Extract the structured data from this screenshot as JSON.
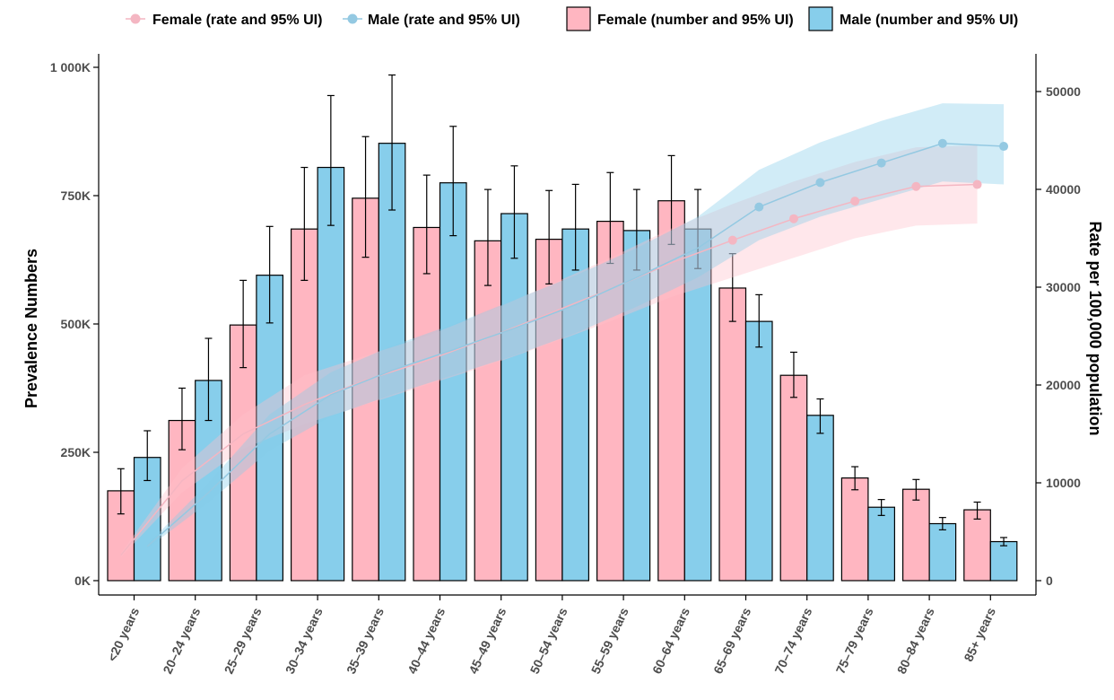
{
  "chart_data": {
    "type": "bar",
    "combined_with": "line",
    "categories": [
      "<20 years",
      "20–24 years",
      "25–29 years",
      "30–34 years",
      "35–39 years",
      "40–44 years",
      "45–49 years",
      "50–54 years",
      "55–59 years",
      "60–64 years",
      "65–69 years",
      "70–74 years",
      "75–79 years",
      "80–84 years",
      "85+ years"
    ],
    "ylabel": "Prevalence Numbers",
    "y2label": "Rate per 100,000 population",
    "ylim": [
      0,
      1000000
    ],
    "y2lim": [
      0,
      50000
    ],
    "y_ticks": [
      0,
      250000,
      500000,
      750000,
      1000000
    ],
    "y_tick_labels": [
      "0K",
      "250K",
      "500K",
      "750K",
      "1 000K"
    ],
    "y2_ticks": [
      0,
      10000,
      20000,
      30000,
      40000,
      50000
    ],
    "y2_tick_labels": [
      "0",
      "10000",
      "20000",
      "30000",
      "40000",
      "50000"
    ],
    "legend_position": "top",
    "grid": false,
    "colors": {
      "female_bar": "#ffb6c1",
      "male_bar": "#87ceeb",
      "female_line": "#f4b6c2",
      "male_line": "#94c9e2",
      "female_band": "#ffc0cb",
      "male_band": "#87ceeb"
    },
    "bar_series": [
      {
        "name": "Female (number and 95% UI)",
        "values": [
          175000,
          312000,
          498000,
          685000,
          745000,
          688000,
          662000,
          665000,
          700000,
          740000,
          570000,
          400000,
          200000,
          178000,
          138000
        ],
        "lower": [
          130000,
          255000,
          415000,
          585000,
          630000,
          598000,
          575000,
          578000,
          618000,
          655000,
          505000,
          357000,
          177000,
          157000,
          120000
        ],
        "upper": [
          218000,
          375000,
          585000,
          805000,
          865000,
          790000,
          762000,
          760000,
          795000,
          828000,
          637000,
          445000,
          222000,
          197000,
          153000
        ]
      },
      {
        "name": "Male (number and 95% UI)",
        "values": [
          240000,
          390000,
          595000,
          805000,
          852000,
          775000,
          715000,
          685000,
          682000,
          685000,
          505000,
          322000,
          143000,
          111000,
          76000
        ],
        "lower": [
          195000,
          312000,
          502000,
          692000,
          722000,
          672000,
          628000,
          605000,
          605000,
          608000,
          455000,
          287000,
          127000,
          99000,
          68000
        ],
        "upper": [
          292000,
          472000,
          690000,
          945000,
          985000,
          885000,
          808000,
          772000,
          762000,
          762000,
          557000,
          354000,
          158000,
          123000,
          84000
        ]
      }
    ],
    "line_series": [
      {
        "name": "Female (rate and 95% UI)",
        "values": [
          2600,
          10200,
          15000,
          18000,
          20500,
          22500,
          24800,
          27300,
          29800,
          32500,
          34800,
          37000,
          38800,
          40300,
          40500
        ],
        "lower": [
          2400,
          9000,
          13500,
          16000,
          18000,
          20000,
          22000,
          24200,
          26500,
          29000,
          31000,
          33000,
          35000,
          36300,
          36500
        ],
        "upper": [
          2800,
          11500,
          17000,
          21000,
          23000,
          25000,
          27500,
          30200,
          33000,
          36000,
          38500,
          40800,
          42800,
          44300,
          44500
        ]
      },
      {
        "name": "Male (rate and 95% UI)",
        "values": [
          3500,
          9000,
          15000,
          19000,
          21500,
          23600,
          25800,
          28200,
          31000,
          34000,
          38200,
          40700,
          42700,
          44700,
          44400
        ],
        "lower": [
          3300,
          8000,
          13300,
          16800,
          19000,
          21000,
          23000,
          25300,
          28000,
          31000,
          34800,
          37200,
          39000,
          40800,
          40500
        ],
        "upper": [
          3700,
          10000,
          17000,
          21300,
          24000,
          26200,
          28700,
          31200,
          34000,
          37200,
          42000,
          44800,
          47000,
          48800,
          48700
        ]
      }
    ]
  },
  "legend": {
    "female_rate": "Female (rate and 95% UI)",
    "male_rate": "Male (rate and 95% UI)",
    "female_number": "Female (number and 95% UI)",
    "male_number": "Male (number and 95% UI)"
  }
}
